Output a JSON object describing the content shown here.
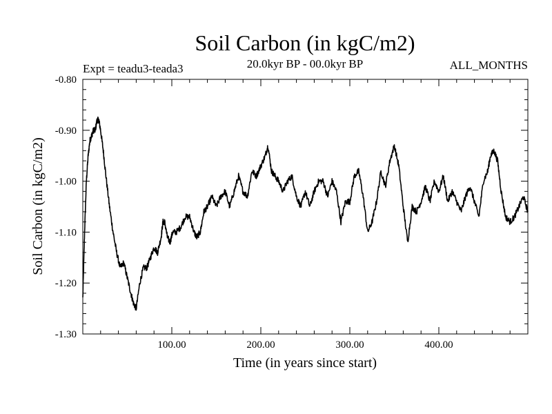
{
  "chart_data": {
    "type": "line",
    "title": "Soil Carbon (in kgC/m2)",
    "subtitle": "20.0kyr BP - 00.0kyr BP",
    "experiment_label": "Expt = teadu3-teada3",
    "period_label": "ALL_MONTHS",
    "xlabel": "Time (in years since start)",
    "ylabel": "Soil Carbon (in kgC/m2)",
    "xlim": [
      0,
      500
    ],
    "ylim": [
      -1.3,
      -0.8
    ],
    "x_ticks": [
      100,
      200,
      300,
      400
    ],
    "x_tick_labels": [
      "100.00",
      "200.00",
      "300.00",
      "400.00"
    ],
    "y_ticks": [
      -0.8,
      -0.9,
      -1.0,
      -1.1,
      -1.2,
      -1.3
    ],
    "y_tick_labels": [
      "-0.80",
      "-0.90",
      "-1.00",
      "-1.10",
      "-1.20",
      "-1.30"
    ],
    "grid": false,
    "series": [
      {
        "name": "Soil Carbon",
        "color": "#000000",
        "x": [
          0,
          2,
          4,
          6,
          8,
          10,
          12,
          14,
          16,
          18,
          20,
          23,
          26,
          30,
          34,
          38,
          42,
          46,
          50,
          54,
          57,
          60,
          64,
          68,
          72,
          76,
          80,
          84,
          88,
          90,
          92,
          95,
          98,
          101,
          105,
          110,
          115,
          120,
          125,
          128,
          132,
          136,
          140,
          145,
          150,
          155,
          160,
          165,
          170,
          175,
          180,
          185,
          190,
          195,
          200,
          205,
          208,
          212,
          216,
          220,
          225,
          230,
          235,
          240,
          245,
          250,
          255,
          260,
          265,
          270,
          275,
          280,
          285,
          290,
          295,
          300,
          305,
          310,
          315,
          320,
          325,
          330,
          335,
          340,
          345,
          350,
          355,
          360,
          365,
          370,
          375,
          380,
          385,
          390,
          395,
          400,
          405,
          410,
          415,
          420,
          425,
          430,
          435,
          440,
          445,
          450,
          455,
          458,
          462,
          466,
          470,
          475,
          480,
          485,
          490,
          495,
          500
        ],
        "values": [
          -1.23,
          -1.1,
          -1.0,
          -0.95,
          -0.92,
          -0.91,
          -0.9,
          -0.9,
          -0.88,
          -0.88,
          -0.9,
          -0.94,
          -0.99,
          -1.05,
          -1.1,
          -1.14,
          -1.17,
          -1.16,
          -1.19,
          -1.22,
          -1.24,
          -1.25,
          -1.2,
          -1.17,
          -1.17,
          -1.15,
          -1.13,
          -1.14,
          -1.11,
          -1.08,
          -1.08,
          -1.11,
          -1.12,
          -1.1,
          -1.1,
          -1.09,
          -1.07,
          -1.07,
          -1.1,
          -1.11,
          -1.1,
          -1.06,
          -1.05,
          -1.03,
          -1.05,
          -1.03,
          -1.02,
          -1.05,
          -1.02,
          -0.99,
          -1.02,
          -1.03,
          -0.98,
          -0.99,
          -0.97,
          -0.95,
          -0.93,
          -0.98,
          -0.99,
          -1.0,
          -1.02,
          -1.0,
          -0.99,
          -1.03,
          -1.05,
          -1.02,
          -1.05,
          -1.02,
          -1.0,
          -1.0,
          -1.03,
          -1.0,
          -1.02,
          -1.08,
          -1.04,
          -1.04,
          -0.99,
          -0.98,
          -1.03,
          -1.1,
          -1.08,
          -1.04,
          -0.98,
          -1.01,
          -0.96,
          -0.93,
          -0.97,
          -1.05,
          -1.12,
          -1.05,
          -1.06,
          -1.04,
          -1.01,
          -1.04,
          -1.0,
          -1.02,
          -0.99,
          -1.04,
          -1.02,
          -1.04,
          -1.06,
          -1.03,
          -1.01,
          -1.04,
          -1.07,
          -1.0,
          -0.98,
          -0.95,
          -0.94,
          -0.96,
          -1.02,
          -1.07,
          -1.08,
          -1.07,
          -1.05,
          -1.03,
          -1.06
        ]
      }
    ]
  }
}
